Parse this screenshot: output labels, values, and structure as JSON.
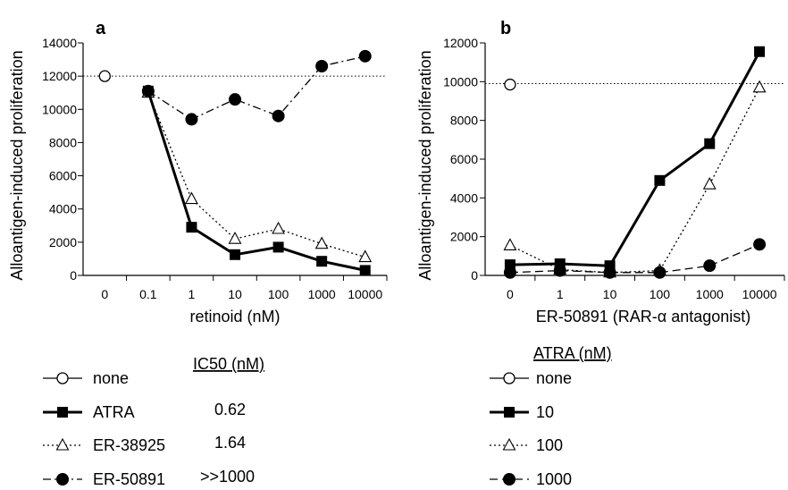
{
  "chart_data": [
    {
      "panel_label": "a",
      "type": "line",
      "categories": [
        "0",
        "0.1",
        "1",
        "10",
        "100",
        "1000",
        "10000"
      ],
      "xlabel": "retinoid (nM)",
      "ylabel": "Alloantigen-induced proliferation",
      "ylim": [
        0,
        14000
      ],
      "yticks": [
        "0",
        "2000",
        "4000",
        "6000",
        "8000",
        "10000",
        "12000",
        "14000"
      ],
      "reference_line": 12000,
      "series": [
        {
          "name": "none",
          "marker": "open-circle",
          "line": "none",
          "values": [
            12000,
            null,
            null,
            null,
            null,
            null,
            null
          ]
        },
        {
          "name": "ATRA",
          "marker": "filled-square",
          "line": "solid-thick",
          "values": [
            null,
            11100,
            2900,
            1250,
            1700,
            850,
            300
          ]
        },
        {
          "name": "ER-38925",
          "marker": "open-triangle",
          "line": "dotted",
          "values": [
            null,
            11000,
            4600,
            2200,
            2800,
            1900,
            1100
          ]
        },
        {
          "name": "ER-50891",
          "marker": "filled-circle",
          "line": "dash-dot",
          "values": [
            null,
            11100,
            9400,
            10600,
            9600,
            12600,
            13200
          ]
        }
      ],
      "legend": {
        "title": "IC50 (nM)",
        "entries": [
          {
            "label": "none",
            "ic50": ""
          },
          {
            "label": "ATRA",
            "ic50": "0.62"
          },
          {
            "label": "ER-38925",
            "ic50": "1.64"
          },
          {
            "label": "ER-50891",
            "ic50": ">>1000"
          }
        ]
      }
    },
    {
      "panel_label": "b",
      "type": "line",
      "categories": [
        "0",
        "1",
        "10",
        "100",
        "1000",
        "10000"
      ],
      "xlabel": "ER-50891 (RAR-α antagonist)",
      "ylabel": "Alloantigen-induced proliferation",
      "ylim": [
        0,
        12000
      ],
      "yticks": [
        "0",
        "2000",
        "4000",
        "6000",
        "8000",
        "10000",
        "12000"
      ],
      "reference_line": 9900,
      "series": [
        {
          "name": "none",
          "marker": "open-circle",
          "line": "none",
          "values": [
            9850,
            null,
            null,
            null,
            null,
            null
          ]
        },
        {
          "name": "10",
          "marker": "filled-square",
          "line": "solid-thick",
          "values": [
            550,
            600,
            500,
            4900,
            6800,
            11550
          ]
        },
        {
          "name": "100",
          "marker": "open-triangle",
          "line": "dotted",
          "values": [
            1550,
            300,
            150,
            250,
            4700,
            9700
          ]
        },
        {
          "name": "1000",
          "marker": "filled-circle",
          "line": "dash",
          "values": [
            150,
            250,
            150,
            150,
            500,
            1600
          ]
        }
      ],
      "legend": {
        "title": "ATRA (nM)",
        "entries": [
          {
            "label": "none"
          },
          {
            "label": "10"
          },
          {
            "label": "100"
          },
          {
            "label": "1000"
          }
        ]
      }
    }
  ]
}
